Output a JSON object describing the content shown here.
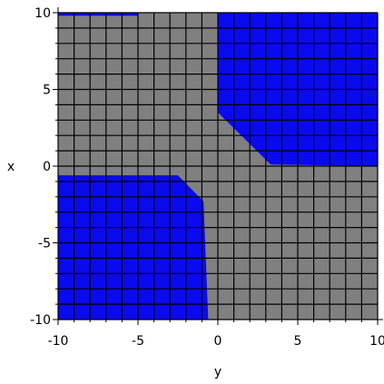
{
  "chart_data": {
    "type": "heatmap",
    "title": "",
    "xlabel": "y",
    "ylabel": "x",
    "xlim": [
      -10,
      10
    ],
    "ylim": [
      -10,
      10
    ],
    "x_ticks": [
      "-10",
      "-5",
      "0",
      "5",
      "10"
    ],
    "y_ticks": [
      "10",
      "5",
      "0",
      "-5",
      "-10"
    ],
    "grid_cells": 20,
    "grid": true,
    "colors": {
      "blue_region": "#0a0aee",
      "gray_region": "#808080",
      "grid_line": "#000000",
      "background": "#ffffff"
    },
    "regions": [
      {
        "name": "blue-region-upper-right",
        "color": "blue",
        "polygon": [
          [
            0,
            10
          ],
          [
            10,
            10
          ],
          [
            10,
            0
          ],
          [
            3.3,
            0.1
          ],
          [
            0,
            3.5
          ]
        ]
      },
      {
        "name": "blue-region-lower-left",
        "color": "blue",
        "polygon": [
          [
            -10,
            -0.6
          ],
          [
            -2.5,
            -0.6
          ],
          [
            -0.9,
            -2.3
          ],
          [
            -0.6,
            -10
          ],
          [
            -10,
            -10
          ]
        ]
      },
      {
        "name": "blue-strip-top-left",
        "color": "blue",
        "polygon": [
          [
            -10,
            10
          ],
          [
            -5,
            10
          ],
          [
            -5,
            9.8
          ],
          [
            -10,
            9.8
          ]
        ]
      }
    ]
  }
}
